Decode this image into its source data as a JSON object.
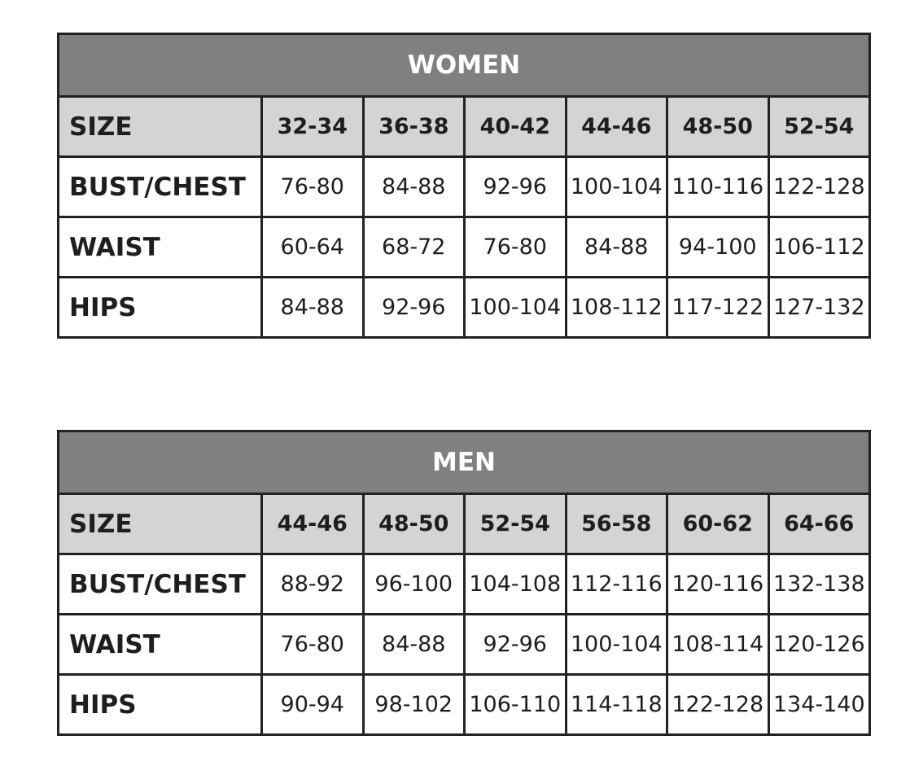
{
  "tables": [
    {
      "title": "WOMEN",
      "rows": [
        {
          "label": "SIZE",
          "values": [
            "32-34",
            "36-38",
            "40-42",
            "44-46",
            "48-50",
            "52-54"
          ]
        },
        {
          "label": "BUST/CHEST",
          "values": [
            "76-80",
            "84-88",
            "92-96",
            "100-104",
            "110-116",
            "122-128"
          ]
        },
        {
          "label": "WAIST",
          "values": [
            "60-64",
            "68-72",
            "76-80",
            "84-88",
            "94-100",
            "106-112"
          ]
        },
        {
          "label": "HIPS",
          "values": [
            "84-88",
            "92-96",
            "100-104",
            "108-112",
            "117-122",
            "127-132"
          ]
        }
      ]
    },
    {
      "title": "MEN",
      "rows": [
        {
          "label": "SIZE",
          "values": [
            "44-46",
            "48-50",
            "52-54",
            "56-58",
            "60-62",
            "64-66"
          ]
        },
        {
          "label": "BUST/CHEST",
          "values": [
            "88-92",
            "96-100",
            "104-108",
            "112-116",
            "120-116",
            "132-138"
          ]
        },
        {
          "label": "WAIST",
          "values": [
            "76-80",
            "84-88",
            "92-96",
            "100-104",
            "108-114",
            "120-126"
          ]
        },
        {
          "label": "HIPS",
          "values": [
            "90-94",
            "98-102",
            "106-110",
            "114-118",
            "122-128",
            "134-140"
          ]
        }
      ]
    }
  ],
  "colors": {
    "title_bg": "#808080",
    "size_row_bg": "#d4d4d4",
    "border": "#222222"
  }
}
